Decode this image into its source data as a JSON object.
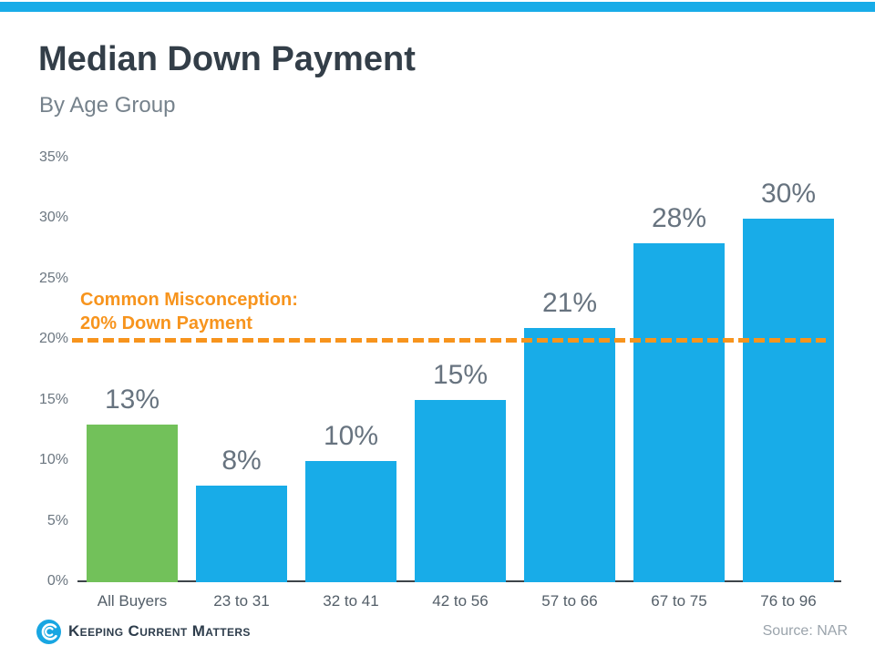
{
  "header": {
    "title": "Median Down Payment",
    "subtitle": "By Age Group"
  },
  "annotation": {
    "line1": "Common Misconception:",
    "line2": "20% Down Payment",
    "threshold_percent": 20
  },
  "chart_data": {
    "type": "bar",
    "title": "Median Down Payment",
    "subtitle": "By Age Group",
    "categories": [
      "All Buyers",
      "23 to 31",
      "32 to 41",
      "42 to 56",
      "57 to 66",
      "67 to 75",
      "76 to 96"
    ],
    "values": [
      13,
      8,
      10,
      15,
      21,
      28,
      30
    ],
    "value_labels": [
      "13%",
      "8%",
      "10%",
      "15%",
      "21%",
      "28%",
      "30%"
    ],
    "bar_colors": [
      "#72c15a",
      "#18ace8",
      "#18ace8",
      "#18ace8",
      "#18ace8",
      "#18ace8",
      "#18ace8"
    ],
    "xlabel": "",
    "ylabel": "",
    "ylim": [
      0,
      35
    ],
    "ytick_interval": 5,
    "yticks": [
      "0%",
      "5%",
      "10%",
      "15%",
      "20%",
      "25%",
      "30%",
      "35%"
    ],
    "grid": false,
    "legend": "none",
    "reference_line": {
      "value": 20,
      "style": "dashed",
      "color": "#f7941d",
      "label": "Common Misconception: 20% Down Payment"
    }
  },
  "footer": {
    "logo_text": "Keeping Current Matters",
    "source": "Source: NAR"
  },
  "colors": {
    "top_strip": "#18ace8",
    "bar_blue": "#18ace8",
    "bar_green": "#72c15a",
    "accent_orange": "#f7941d",
    "title_text": "#333e48",
    "subtitle_text": "#76828c",
    "axis_label": "#6b7680",
    "value_label": "#67737f",
    "axis_line": "#3d444a",
    "source_text": "#9ba4ac",
    "logo_text": "#2e3d4c"
  }
}
